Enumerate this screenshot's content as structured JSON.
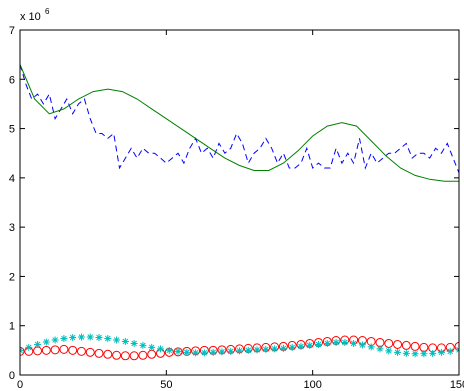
{
  "chart_data": {
    "type": "line",
    "title": "",
    "xlabel": "",
    "ylabel": "",
    "y_multiplier": {
      "base": "x 10",
      "exponent": "6"
    },
    "xlim": [
      0,
      150
    ],
    "ylim": [
      0,
      7
    ],
    "xticks": [
      0,
      50,
      100,
      150
    ],
    "yticks": [
      0,
      1,
      2,
      3,
      4,
      5,
      6,
      7
    ],
    "xtick_labels": [
      "0",
      "50",
      "100",
      "150"
    ],
    "ytick_labels": [
      "0",
      "1",
      "2",
      "3",
      "4",
      "5",
      "6",
      "7"
    ],
    "grid": false,
    "legend": "none",
    "series": [
      {
        "style": "dashed",
        "color": "#0000ff",
        "x": [
          0,
          2,
          4,
          6,
          8,
          10,
          12,
          14,
          16,
          18,
          20,
          22,
          24,
          26,
          28,
          30,
          32,
          34,
          36,
          38,
          40,
          42,
          44,
          46,
          48,
          50,
          52,
          54,
          56,
          58,
          60,
          62,
          64,
          66,
          68,
          70,
          72,
          74,
          76,
          78,
          80,
          82,
          84,
          86,
          88,
          90,
          92,
          94,
          96,
          98,
          100,
          102,
          104,
          106,
          108,
          110,
          112,
          114,
          116,
          118,
          120,
          122,
          124,
          126,
          128,
          130,
          132,
          134,
          136,
          138,
          140,
          142,
          144,
          146,
          148,
          150
        ],
        "y": [
          6.3,
          5.9,
          5.6,
          5.7,
          5.5,
          5.7,
          5.2,
          5.4,
          5.6,
          5.3,
          5.5,
          5.6,
          5.2,
          4.9,
          4.9,
          4.8,
          4.9,
          4.2,
          4.4,
          4.6,
          4.4,
          4.6,
          4.5,
          4.5,
          4.4,
          4.3,
          4.4,
          4.5,
          4.3,
          4.6,
          4.8,
          4.5,
          4.6,
          4.4,
          4.7,
          4.5,
          4.6,
          4.9,
          4.7,
          4.3,
          4.5,
          4.6,
          4.8,
          4.6,
          4.3,
          4.5,
          4.2,
          4.2,
          4.3,
          4.6,
          4.2,
          4.3,
          4.2,
          4.2,
          4.6,
          4.3,
          4.5,
          4.3,
          4.8,
          4.2,
          4.5,
          4.3,
          4.4,
          4.5,
          4.5,
          4.6,
          4.7,
          4.4,
          4.5,
          4.5,
          4.4,
          4.6,
          4.5,
          4.7,
          4.4,
          4.1
        ]
      },
      {
        "style": "solid",
        "color": "#008000",
        "x": [
          0,
          5,
          10,
          15,
          20,
          25,
          30,
          35,
          40,
          45,
          50,
          55,
          60,
          65,
          70,
          75,
          80,
          85,
          90,
          95,
          100,
          105,
          110,
          115,
          120,
          125,
          130,
          135,
          140,
          145,
          150
        ],
        "y": [
          6.3,
          5.6,
          5.3,
          5.4,
          5.6,
          5.75,
          5.8,
          5.75,
          5.6,
          5.4,
          5.2,
          5.0,
          4.8,
          4.6,
          4.4,
          4.25,
          4.15,
          4.15,
          4.3,
          4.55,
          4.85,
          5.05,
          5.12,
          5.05,
          4.75,
          4.45,
          4.2,
          4.05,
          3.97,
          3.93,
          3.93
        ]
      },
      {
        "style": "circle",
        "color": "#ff0000",
        "x": [
          0,
          3,
          6,
          9,
          12,
          15,
          18,
          21,
          24,
          27,
          30,
          33,
          36,
          39,
          42,
          45,
          48,
          51,
          54,
          57,
          60,
          63,
          66,
          69,
          72,
          75,
          78,
          81,
          84,
          87,
          90,
          93,
          96,
          99,
          102,
          105,
          108,
          111,
          114,
          117,
          120,
          123,
          126,
          129,
          132,
          135,
          138,
          141,
          144,
          147,
          150
        ],
        "y": [
          0.48,
          0.48,
          0.49,
          0.5,
          0.51,
          0.52,
          0.5,
          0.48,
          0.46,
          0.44,
          0.42,
          0.4,
          0.39,
          0.39,
          0.4,
          0.42,
          0.44,
          0.46,
          0.47,
          0.48,
          0.49,
          0.5,
          0.5,
          0.51,
          0.52,
          0.53,
          0.54,
          0.55,
          0.56,
          0.57,
          0.58,
          0.6,
          0.62,
          0.64,
          0.66,
          0.68,
          0.7,
          0.71,
          0.71,
          0.7,
          0.68,
          0.66,
          0.64,
          0.62,
          0.6,
          0.58,
          0.56,
          0.55,
          0.55,
          0.56,
          0.58
        ]
      },
      {
        "style": "star",
        "color": "#00bfbf",
        "x": [
          0,
          3,
          6,
          9,
          12,
          15,
          18,
          21,
          24,
          27,
          30,
          33,
          36,
          39,
          42,
          45,
          48,
          51,
          54,
          57,
          60,
          63,
          66,
          69,
          72,
          75,
          78,
          81,
          84,
          87,
          90,
          93,
          96,
          99,
          102,
          105,
          108,
          111,
          114,
          117,
          120,
          123,
          126,
          129,
          132,
          135,
          138,
          141,
          144,
          147,
          150
        ],
        "y": [
          0.5,
          0.56,
          0.62,
          0.67,
          0.71,
          0.74,
          0.76,
          0.77,
          0.77,
          0.76,
          0.74,
          0.71,
          0.68,
          0.64,
          0.6,
          0.56,
          0.53,
          0.5,
          0.48,
          0.46,
          0.45,
          0.45,
          0.46,
          0.47,
          0.48,
          0.49,
          0.5,
          0.51,
          0.52,
          0.53,
          0.54,
          0.56,
          0.58,
          0.6,
          0.62,
          0.64,
          0.66,
          0.66,
          0.64,
          0.61,
          0.57,
          0.53,
          0.49,
          0.46,
          0.44,
          0.43,
          0.43,
          0.44,
          0.46,
          0.48,
          0.51
        ]
      }
    ]
  }
}
